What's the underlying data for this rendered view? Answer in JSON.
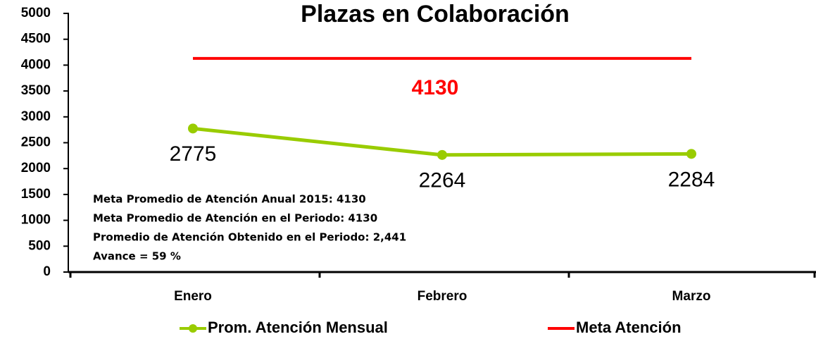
{
  "chart_data": {
    "type": "line",
    "title": "Plazas en Colaboración",
    "categories": [
      "Enero",
      "Febrero",
      "Marzo"
    ],
    "series": [
      {
        "name": "Prom. Atención Mensual",
        "color": "#99cc00",
        "values": [
          2775,
          2264,
          2284
        ]
      },
      {
        "name": "Meta Atención",
        "color": "#ff0000",
        "values": [
          4130,
          4130,
          4130
        ]
      }
    ],
    "ylim": [
      0,
      5000
    ],
    "yticks": [
      0,
      500,
      1000,
      1500,
      2000,
      2500,
      3000,
      3500,
      4000,
      4500,
      5000
    ],
    "annotations": [
      "Meta Promedio de Atención Anual 2015: 4130",
      "Meta Promedio de Atención en el Periodo: 4130",
      "Promedio de Atención Obtenido en el Periodo: 2,441",
      "Avance = 59 %"
    ],
    "legend": "bottom"
  }
}
